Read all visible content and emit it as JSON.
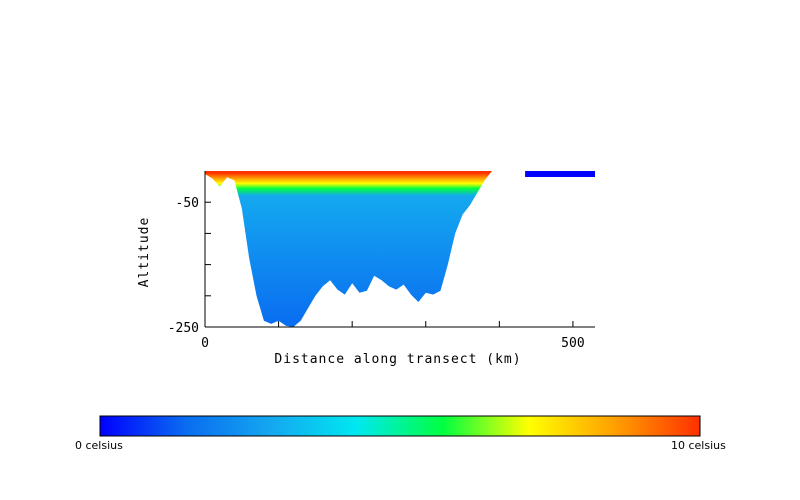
{
  "chart_data": {
    "type": "heatmap",
    "title": "",
    "xlabel": "Distance along transect (km)",
    "ylabel": "Altitude",
    "xlim": [
      0,
      530
    ],
    "ylim": [
      -250,
      0
    ],
    "xticks": [
      0,
      100,
      200,
      300,
      400,
      500
    ],
    "xtick_labels": [
      "0",
      "",
      "",
      "",
      "",
      "500"
    ],
    "yticks": [
      -250,
      -200,
      -150,
      -100,
      -50
    ],
    "ytick_labels": [
      "-250",
      "",
      "",
      "",
      "-50"
    ],
    "colorbar": {
      "min": 0,
      "max": 10,
      "min_label": "0 celsius",
      "max_label": "10 celsius",
      "colors": [
        "#0000ff",
        "#0a6cf0",
        "#14a8f0",
        "#00e8f0",
        "#00ff40",
        "#ffff00",
        "#ffa000",
        "#ff3000"
      ]
    },
    "bottom_profile": [
      [
        0,
        -5
      ],
      [
        10,
        -12
      ],
      [
        20,
        -25
      ],
      [
        30,
        -10
      ],
      [
        40,
        -15
      ],
      [
        50,
        -60
      ],
      [
        60,
        -140
      ],
      [
        70,
        -200
      ],
      [
        80,
        -240
      ],
      [
        90,
        -245
      ],
      [
        100,
        -240
      ],
      [
        110,
        -248
      ],
      [
        120,
        -250
      ],
      [
        130,
        -240
      ],
      [
        140,
        -220
      ],
      [
        150,
        -200
      ],
      [
        160,
        -185
      ],
      [
        170,
        -175
      ],
      [
        180,
        -190
      ],
      [
        190,
        -198
      ],
      [
        200,
        -180
      ],
      [
        210,
        -195
      ],
      [
        220,
        -192
      ],
      [
        230,
        -168
      ],
      [
        240,
        -175
      ],
      [
        250,
        -185
      ],
      [
        260,
        -190
      ],
      [
        270,
        -182
      ],
      [
        280,
        -198
      ],
      [
        290,
        -210
      ],
      [
        300,
        -195
      ],
      [
        310,
        -198
      ],
      [
        320,
        -192
      ],
      [
        330,
        -150
      ],
      [
        340,
        -100
      ],
      [
        350,
        -70
      ],
      [
        360,
        -55
      ],
      [
        370,
        -35
      ],
      [
        380,
        -15
      ],
      [
        390,
        0
      ]
    ],
    "temperature_layers": [
      {
        "depth": -3,
        "celsius": 9.5
      },
      {
        "depth": -12,
        "celsius": 8.5
      },
      {
        "depth": -20,
        "celsius": 7.5
      },
      {
        "depth": -28,
        "celsius": 6.0
      },
      {
        "depth": -40,
        "celsius": 3.5
      },
      {
        "depth": -250,
        "celsius": 2.0
      }
    ],
    "surface_bar": {
      "x_start": 435,
      "x_end": 530,
      "celsius": 0
    }
  }
}
